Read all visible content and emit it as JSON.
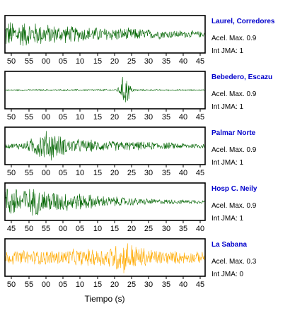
{
  "chart_data": {
    "type": "line",
    "xlabel": "Tiempo (s)",
    "accel_label": "Acel. Max.",
    "int_label": "Int JMA:",
    "name_color": "#0000cc",
    "panels": [
      {
        "station": "Laurel, Corredores",
        "acel_max": "0.9",
        "int_jma": "1",
        "color": "#006400",
        "ticks": [
          "50",
          "55",
          "00",
          "05",
          "10",
          "15",
          "20",
          "25",
          "30",
          "35",
          "40",
          "45"
        ],
        "envelope": [
          0.85,
          0.8,
          0.75,
          0.7,
          0.6,
          0.55,
          0.5,
          0.45,
          0.45,
          0.42,
          0.4,
          0.38,
          0.35,
          0.3,
          0.28,
          0.25,
          0.22,
          0.2,
          0.18
        ],
        "spike": null
      },
      {
        "station": "Bebedero, Escazu",
        "acel_max": "0.9",
        "int_jma": "1",
        "color": "#006400",
        "ticks": [
          "50",
          "55",
          "00",
          "05",
          "10",
          "15",
          "20",
          "25",
          "30",
          "35",
          "40",
          "45"
        ],
        "envelope": [
          0.04,
          0.04,
          0.05,
          0.05,
          0.04,
          0.05,
          0.05,
          0.05,
          0.05,
          0.06,
          0.05,
          0.05,
          0.05,
          0.05,
          0.04,
          0.04,
          0.04,
          0.04,
          0.04
        ],
        "spike": {
          "at": 0.6,
          "amp": 0.95,
          "width": 0.025
        }
      },
      {
        "station": "Palmar Norte",
        "acel_max": "0.9",
        "int_jma": "1",
        "color": "#006400",
        "ticks": [
          "50",
          "55",
          "00",
          "05",
          "10",
          "15",
          "20",
          "25",
          "30",
          "35",
          "40",
          "45"
        ],
        "envelope": [
          0.12,
          0.18,
          0.3,
          0.75,
          1.0,
          0.6,
          0.45,
          0.4,
          0.35,
          0.32,
          0.3,
          0.28,
          0.26,
          0.24,
          0.22,
          0.2,
          0.18,
          0.16,
          0.15
        ],
        "spike": null
      },
      {
        "station": "Hosp C. Neily",
        "acel_max": "0.9",
        "int_jma": "1",
        "color": "#006400",
        "ticks": [
          "45",
          "50",
          "55",
          "00",
          "05",
          "10",
          "15",
          "20",
          "25",
          "30",
          "35",
          "40"
        ],
        "envelope": [
          0.9,
          0.95,
          0.85,
          0.8,
          0.7,
          0.6,
          0.55,
          0.5,
          0.42,
          0.35,
          0.3,
          0.26,
          0.22,
          0.18,
          0.15,
          0.14,
          0.12,
          0.12,
          0.1
        ],
        "spike": null
      },
      {
        "station": "La Sabana",
        "acel_max": "0.3",
        "int_jma": "0",
        "color": "#ffaa00",
        "ticks": [
          "50",
          "55",
          "00",
          "05",
          "10",
          "15",
          "20",
          "25",
          "30",
          "35",
          "40",
          "45"
        ],
        "envelope": [
          0.4,
          0.42,
          0.45,
          0.45,
          0.45,
          0.48,
          0.5,
          0.5,
          0.55,
          0.6,
          0.85,
          1.0,
          0.7,
          0.55,
          0.45,
          0.4,
          0.38,
          0.35,
          0.32
        ],
        "spike": null
      }
    ]
  }
}
